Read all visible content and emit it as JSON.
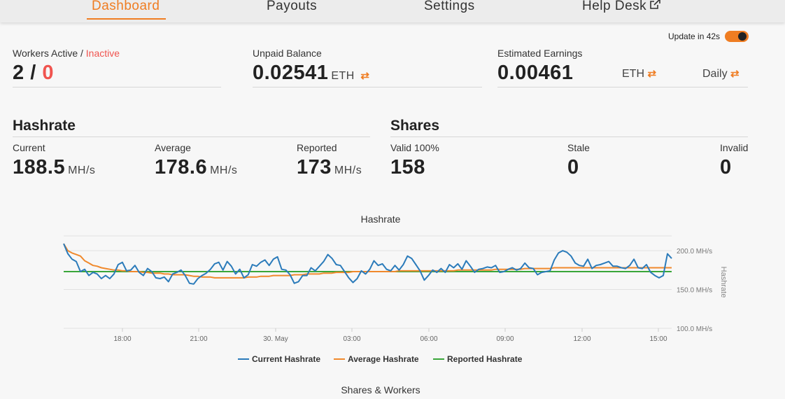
{
  "nav": {
    "tabs": [
      "Dashboard",
      "Payouts",
      "Settings",
      "Help Desk"
    ],
    "active": "Dashboard"
  },
  "update": {
    "label": "Update in 42s",
    "enabled": true
  },
  "workers": {
    "label_active": "Workers Active",
    "sep": "/",
    "label_inactive": "Inactive",
    "active": "2",
    "inactive": "0"
  },
  "balance": {
    "label": "Unpaid Balance",
    "value": "0.02541",
    "unit": "ETH"
  },
  "earnings": {
    "label": "Estimated Earnings",
    "value": "0.00461",
    "unit": "ETH",
    "period": "Daily"
  },
  "hashrate": {
    "title": "Hashrate",
    "current_label": "Current",
    "current": "188.5",
    "average_label": "Average",
    "average": "178.6",
    "reported_label": "Reported",
    "reported": "173",
    "unit": "MH/s"
  },
  "shares": {
    "title": "Shares",
    "valid_label": "Valid 100%",
    "valid": "158",
    "stale_label": "Stale",
    "stale": "0",
    "invalid_label": "Invalid",
    "invalid": "0"
  },
  "colors": {
    "accent": "#ef7d22",
    "inactive": "#f0544f",
    "current": "#2b7bba",
    "average": "#f0892c",
    "reported": "#3aa63a"
  },
  "chart_data": {
    "type": "line",
    "title": "Hashrate",
    "ylabel": "Hashrate",
    "ylim": [
      100,
      200
    ],
    "yticks": [
      "100.0 MH/s",
      "150.0 MH/s",
      "200.0 MH/s"
    ],
    "xticks": [
      "18:00",
      "21:00",
      "30. May",
      "03:00",
      "06:00",
      "09:00",
      "12:00",
      "15:00"
    ],
    "series": [
      {
        "name": "Current Hashrate",
        "values": [
          209,
          196,
          189,
          186,
          173,
          176,
          168,
          172,
          170,
          164,
          168,
          164,
          170,
          182,
          185,
          174,
          175,
          181,
          172,
          168,
          177,
          173,
          165,
          164,
          166,
          160,
          170,
          172,
          175,
          168,
          158,
          157,
          164,
          168,
          171,
          176,
          183,
          185,
          175,
          186,
          180,
          170,
          176,
          165,
          169,
          182,
          180,
          185,
          188,
          181,
          189,
          192,
          176,
          175,
          169,
          158,
          160,
          168,
          168,
          178,
          174,
          180,
          186,
          195,
          190,
          182,
          181,
          173,
          165,
          159,
          164,
          174,
          170,
          176,
          187,
          181,
          183,
          176,
          174,
          181,
          175,
          182,
          193,
          190,
          182,
          174,
          162,
          168,
          175,
          172,
          177,
          172,
          182,
          178,
          183,
          176,
          187,
          180,
          172,
          176,
          177,
          179,
          178,
          181,
          172,
          173,
          176,
          178,
          175,
          177,
          184,
          178,
          177,
          169,
          172,
          173,
          174,
          188,
          197,
          200,
          198,
          193,
          184,
          181,
          180,
          189,
          177,
          181,
          182,
          184,
          186,
          180,
          180,
          178,
          177,
          181,
          189,
          178,
          177,
          182,
          172,
          168,
          165,
          168,
          196,
          190
        ]
      },
      {
        "name": "Average Hashrate",
        "values": [
          209,
          200,
          197,
          195,
          193,
          187,
          184,
          181,
          180,
          178,
          177,
          176,
          175,
          175,
          174,
          174,
          173,
          173,
          173,
          172,
          172,
          171,
          171,
          171,
          170,
          170,
          169,
          169,
          169,
          169,
          168,
          167,
          167,
          166,
          166,
          166,
          165,
          165,
          165,
          165,
          165,
          165,
          165,
          165,
          166,
          166,
          166,
          167,
          167,
          167,
          168,
          168,
          168,
          168,
          168,
          169,
          169,
          169,
          170,
          170,
          170,
          170,
          171,
          171,
          171,
          172,
          172,
          172,
          172,
          173,
          173,
          173,
          173,
          173,
          173,
          173,
          173,
          173,
          173,
          173,
          174,
          174,
          174,
          174,
          174,
          174,
          174,
          174,
          174,
          174,
          174,
          174,
          174,
          174,
          175,
          175,
          175,
          175,
          175,
          175,
          175,
          175,
          175,
          176,
          176,
          176,
          176,
          176,
          176,
          176,
          177,
          177,
          177,
          177,
          177,
          177,
          177,
          178,
          178,
          178,
          178,
          178,
          178,
          178,
          178,
          178,
          178,
          178,
          178,
          178,
          178,
          178,
          178,
          178,
          178,
          178,
          178,
          178,
          178,
          178,
          178,
          178,
          178,
          178,
          178,
          178
        ]
      },
      {
        "name": "Reported Hashrate",
        "values": [
          173,
          173,
          173,
          173,
          173,
          173,
          173,
          173,
          173,
          173,
          173,
          173,
          173,
          173,
          173,
          173,
          173,
          173,
          173,
          173,
          173,
          173,
          173,
          173,
          173,
          173,
          173,
          173,
          173,
          173,
          173,
          173,
          173,
          173,
          173,
          173,
          173,
          173,
          173,
          173,
          173,
          173,
          173,
          173,
          173,
          173,
          173,
          173,
          173,
          173,
          173,
          173,
          173,
          173,
          173,
          173,
          173,
          173,
          173,
          173,
          173,
          173,
          173,
          173,
          173,
          173,
          173,
          173,
          173,
          173,
          173,
          173,
          173,
          173,
          173,
          173,
          173,
          173,
          173,
          173,
          173,
          173,
          173,
          173,
          173,
          173,
          173,
          173,
          173,
          173,
          173,
          173,
          173,
          173,
          173,
          173,
          173,
          173,
          173,
          173,
          173,
          173,
          173,
          173,
          173,
          173,
          173,
          173,
          173,
          173,
          173,
          173,
          173,
          173,
          173,
          173,
          173,
          173,
          173,
          173,
          173,
          173,
          173,
          173,
          173,
          173,
          173,
          173,
          173,
          173,
          173,
          173,
          173,
          173,
          173,
          173,
          173,
          173,
          173,
          173,
          173,
          173,
          173,
          173,
          173,
          173
        ]
      }
    ],
    "grid": true,
    "legend": "bottom"
  },
  "footer": {
    "title": "Shares & Workers"
  }
}
